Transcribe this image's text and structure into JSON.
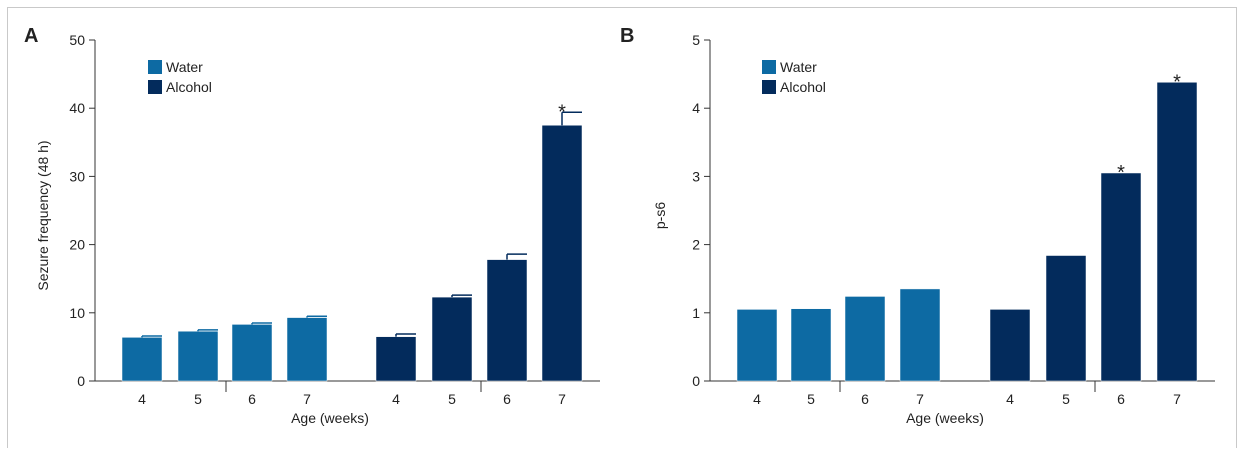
{
  "colors": {
    "water": "#0d6aa3",
    "alcohol": "#032b5c",
    "axis": "#333333",
    "bar_edge": "#ffffff"
  },
  "chart_data": [
    {
      "panel": "A",
      "type": "bar",
      "ylabel": "Sezure frequency (48 h)",
      "xlabel": "Age (weeks)",
      "ylim": [
        0,
        50
      ],
      "yticks": [
        0,
        10,
        20,
        30,
        40,
        50
      ],
      "grid": false,
      "legend_position": "top-left",
      "legend": [
        "Water",
        "Alcohol"
      ],
      "groups": [
        {
          "name": "Water",
          "categories": [
            "4",
            "5",
            "6",
            "7"
          ],
          "values": [
            6.4,
            7.3,
            8.3,
            9.3
          ],
          "errors": [
            0.2,
            0.2,
            0.2,
            0.2
          ],
          "significant": [
            false,
            false,
            false,
            false
          ]
        },
        {
          "name": "Alcohol",
          "categories": [
            "4",
            "5",
            "6",
            "7"
          ],
          "values": [
            6.5,
            12.3,
            17.8,
            37.5
          ],
          "errors": [
            0.4,
            0.3,
            0.8,
            1.9
          ],
          "significant": [
            false,
            false,
            false,
            true
          ]
        }
      ],
      "significance_marker": "*"
    },
    {
      "panel": "B",
      "type": "bar",
      "ylabel": "p-s6",
      "xlabel": "Age (weeks)",
      "ylim": [
        0,
        5
      ],
      "yticks": [
        0,
        1,
        2,
        3,
        4,
        5
      ],
      "grid": false,
      "legend_position": "top-left",
      "legend": [
        "Water",
        "Alcohol"
      ],
      "groups": [
        {
          "name": "Water",
          "categories": [
            "4",
            "5",
            "6",
            "7"
          ],
          "values": [
            1.05,
            1.06,
            1.24,
            1.35
          ],
          "errors": [
            0,
            0,
            0,
            0
          ],
          "significant": [
            false,
            false,
            false,
            false
          ]
        },
        {
          "name": "Alcohol",
          "categories": [
            "4",
            "5",
            "6",
            "7"
          ],
          "values": [
            1.05,
            1.84,
            3.05,
            4.38
          ],
          "errors": [
            0,
            0,
            0,
            0
          ],
          "significant": [
            false,
            false,
            true,
            true
          ]
        }
      ],
      "significance_marker": "*"
    }
  ]
}
